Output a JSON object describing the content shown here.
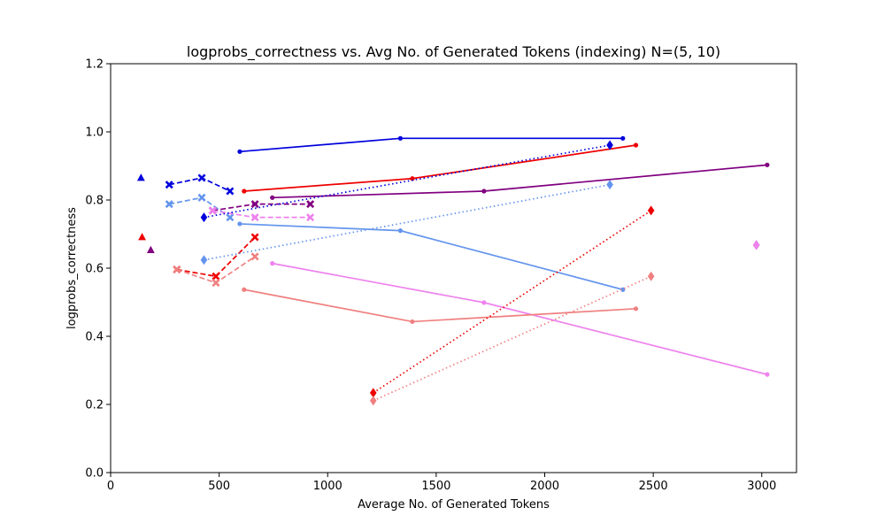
{
  "chart_data": {
    "type": "line",
    "title": "logprobs_correctness vs. Avg No. of Generated Tokens (indexing) N=(5, 10)",
    "xlabel": "Average No. of Generated Tokens",
    "ylabel": "logprobs_correctness",
    "xlim": [
      0,
      3160
    ],
    "ylim": [
      0.0,
      1.2
    ],
    "xticks": [
      0,
      500,
      1000,
      1500,
      2000,
      2500,
      3000
    ],
    "yticks": [
      0.0,
      0.2,
      0.4,
      0.6,
      0.8,
      1.0,
      1.2
    ],
    "xtick_labels": [
      "0",
      "500",
      "1000",
      "1500",
      "2000",
      "2500",
      "3000"
    ],
    "ytick_labels": [
      "0.0",
      "0.2",
      "0.4",
      "0.6",
      "0.8",
      "1.0",
      "1.2"
    ],
    "grid": false,
    "series": [
      {
        "color": "#0000dd",
        "line": "solid",
        "marker": "dot",
        "points": [
          [
            595,
            0.942
          ],
          [
            1335,
            0.981
          ],
          [
            2360,
            0.981
          ]
        ]
      },
      {
        "color": "#ee0000",
        "line": "solid",
        "marker": "dot",
        "points": [
          [
            615,
            0.826
          ],
          [
            1390,
            0.863
          ],
          [
            2420,
            0.961
          ]
        ]
      },
      {
        "color": "#800080",
        "line": "solid",
        "marker": "dot",
        "points": [
          [
            745,
            0.807
          ],
          [
            1720,
            0.826
          ],
          [
            3025,
            0.903
          ]
        ]
      },
      {
        "color": "#6495ed",
        "line": "solid",
        "marker": "dot",
        "points": [
          [
            595,
            0.73
          ],
          [
            1335,
            0.71
          ],
          [
            2360,
            0.537
          ]
        ]
      },
      {
        "color": "#ee82ee",
        "line": "solid",
        "marker": "dot",
        "points": [
          [
            745,
            0.614
          ],
          [
            1720,
            0.499
          ],
          [
            3025,
            0.288
          ]
        ]
      },
      {
        "color": "#f08080",
        "line": "solid",
        "marker": "dot",
        "points": [
          [
            615,
            0.537
          ],
          [
            1390,
            0.443
          ],
          [
            2420,
            0.481
          ]
        ]
      },
      {
        "color": "#0000dd",
        "line": "dashed",
        "marker": "x",
        "points": [
          [
            270,
            0.845
          ],
          [
            420,
            0.865
          ],
          [
            550,
            0.826
          ]
        ]
      },
      {
        "color": "#6495ed",
        "line": "dashed",
        "marker": "x",
        "points": [
          [
            270,
            0.788
          ],
          [
            420,
            0.807
          ],
          [
            550,
            0.749
          ]
        ]
      },
      {
        "color": "#800080",
        "line": "dashed",
        "marker": "x",
        "points": [
          [
            470,
            0.769
          ],
          [
            665,
            0.788
          ],
          [
            920,
            0.788
          ]
        ]
      },
      {
        "color": "#ee82ee",
        "line": "dashed",
        "marker": "x",
        "points": [
          [
            470,
            0.769
          ],
          [
            665,
            0.749
          ],
          [
            920,
            0.749
          ]
        ]
      },
      {
        "color": "#ee0000",
        "line": "dashed",
        "marker": "x",
        "points": [
          [
            305,
            0.596
          ],
          [
            485,
            0.576
          ],
          [
            665,
            0.691
          ]
        ]
      },
      {
        "color": "#f08080",
        "line": "dashed",
        "marker": "x",
        "points": [
          [
            305,
            0.596
          ],
          [
            485,
            0.557
          ],
          [
            665,
            0.634
          ]
        ]
      },
      {
        "color": "#0000dd",
        "line": "dotted",
        "marker": "diamond",
        "points": [
          [
            430,
            0.749
          ],
          [
            2300,
            0.961
          ]
        ]
      },
      {
        "color": "#6495ed",
        "line": "dotted",
        "marker": "diamond",
        "points": [
          [
            430,
            0.624
          ],
          [
            2300,
            0.845
          ]
        ]
      },
      {
        "color": "#ee0000",
        "line": "dotted",
        "marker": "diamond",
        "points": [
          [
            1210,
            0.234
          ],
          [
            2490,
            0.769
          ]
        ]
      },
      {
        "color": "#f08080",
        "line": "dotted",
        "marker": "diamond",
        "points": [
          [
            1210,
            0.211
          ],
          [
            2490,
            0.576
          ]
        ]
      },
      {
        "color": "#800080",
        "line": "none",
        "marker": "diamond",
        "points": [
          [
            2975,
            0.668
          ]
        ]
      },
      {
        "color": "#ee82ee",
        "line": "none",
        "marker": "diamond",
        "points": [
          [
            2975,
            0.668
          ]
        ]
      },
      {
        "color": "#0000dd",
        "line": "none",
        "marker": "triangle",
        "points": [
          [
            140,
            0.865
          ]
        ]
      },
      {
        "color": "#ee0000",
        "line": "none",
        "marker": "triangle",
        "points": [
          [
            145,
            0.691
          ]
        ]
      },
      {
        "color": "#800080",
        "line": "none",
        "marker": "triangle",
        "points": [
          [
            185,
            0.653
          ]
        ]
      }
    ]
  }
}
